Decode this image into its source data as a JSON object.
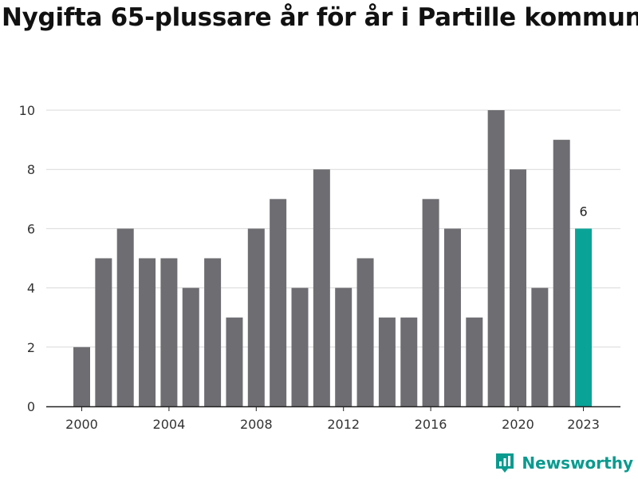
{
  "page": {
    "title": "Nygifta 65-plussare år för år i Partille kommun"
  },
  "brand": {
    "name": "Newsworthy",
    "icon": "newsworthy-logo-icon",
    "color": "#0a9b8f"
  },
  "chart_data": {
    "type": "bar",
    "title": "Nygifta 65-plussare år för år i Partille kommun",
    "xlabel": "",
    "ylabel": "",
    "categories": [
      "2000",
      "2001",
      "2002",
      "2003",
      "2004",
      "2005",
      "2006",
      "2007",
      "2008",
      "2009",
      "2010",
      "2011",
      "2012",
      "2013",
      "2014",
      "2015",
      "2016",
      "2017",
      "2018",
      "2019",
      "2020",
      "2021",
      "2022",
      "2023"
    ],
    "values": [
      2,
      5,
      6,
      5,
      5,
      4,
      5,
      3,
      6,
      7,
      4,
      8,
      4,
      5,
      3,
      3,
      7,
      6,
      3,
      10,
      8,
      4,
      9,
      6
    ],
    "x_ticks": [
      "2000",
      "2004",
      "2008",
      "2012",
      "2016",
      "2020",
      "2023"
    ],
    "y_ticks": [
      0,
      2,
      4,
      6,
      8,
      10
    ],
    "ylim": [
      0,
      10
    ],
    "grid": true,
    "legend": "none",
    "bar_color": "#6e6d72",
    "highlight_color": "#0aa398",
    "highlight_category": "2023",
    "data_labels": [
      {
        "category": "2023",
        "text": "6"
      }
    ]
  }
}
